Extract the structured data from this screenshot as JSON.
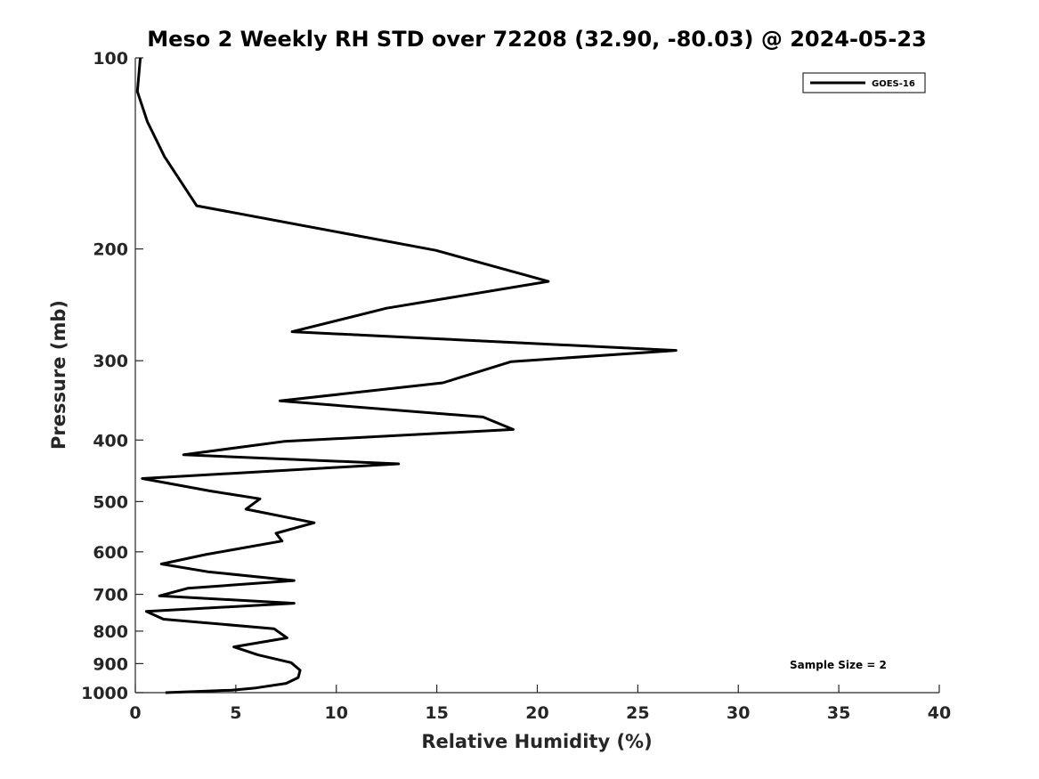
{
  "chart_data": {
    "type": "line",
    "title": "Meso 2 Weekly RH STD over 72208 (32.90, -80.03) @ 2024-05-23",
    "xlabel": "Relative Humidity (%)",
    "ylabel": "Pressure (mb)",
    "xlim": [
      0,
      40
    ],
    "ylim": [
      1000,
      100
    ],
    "y_scale": "log",
    "y_reversed": true,
    "grid": false,
    "x_ticks": [
      "0",
      "5",
      "10",
      "15",
      "20",
      "25",
      "30",
      "35",
      "40"
    ],
    "y_ticks": [
      "100",
      "200",
      "300",
      "400",
      "500",
      "600",
      "700",
      "800",
      "900",
      "1000"
    ],
    "legend": {
      "position": "top-right",
      "entries": [
        "GOES-16"
      ]
    },
    "annotation": "Sample Size = 2",
    "series": [
      {
        "name": "GOES-16",
        "color": "#000000",
        "points": [
          [
            0.25,
            100
          ],
          [
            0.1,
            113
          ],
          [
            0.6,
            126
          ],
          [
            1.45,
            143
          ],
          [
            3.05,
            171
          ],
          [
            14.95,
            201
          ],
          [
            20.55,
            225
          ],
          [
            12.5,
            248
          ],
          [
            7.8,
            270
          ],
          [
            26.9,
            289
          ],
          [
            18.7,
            301
          ],
          [
            15.3,
            325
          ],
          [
            7.2,
            347
          ],
          [
            17.3,
            368
          ],
          [
            18.8,
            385
          ],
          [
            7.4,
            402
          ],
          [
            2.4,
            422
          ],
          [
            13.1,
            436
          ],
          [
            0.35,
            460
          ],
          [
            3.7,
            481
          ],
          [
            6.2,
            495
          ],
          [
            5.5,
            514
          ],
          [
            8.9,
            540
          ],
          [
            7.0,
            561
          ],
          [
            7.3,
            577
          ],
          [
            3.5,
            606
          ],
          [
            1.3,
            627
          ],
          [
            3.6,
            645
          ],
          [
            7.9,
            666
          ],
          [
            2.6,
            685
          ],
          [
            1.2,
            704
          ],
          [
            7.9,
            723
          ],
          [
            0.55,
            745
          ],
          [
            1.4,
            766
          ],
          [
            6.9,
            793
          ],
          [
            7.55,
            820
          ],
          [
            4.9,
            847
          ],
          [
            6.1,
            872
          ],
          [
            7.75,
            897
          ],
          [
            8.2,
            922
          ],
          [
            8.1,
            947
          ],
          [
            7.5,
            967
          ],
          [
            6.0,
            983
          ],
          [
            4.8,
            991
          ],
          [
            1.5,
            1000
          ]
        ]
      }
    ]
  }
}
